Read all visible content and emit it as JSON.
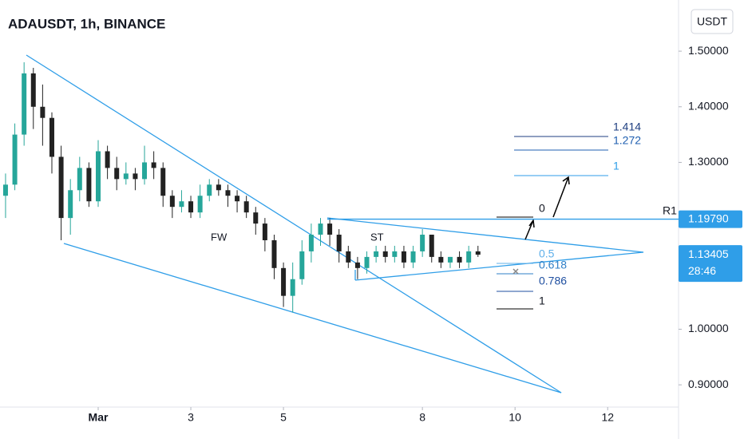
{
  "chart_data": {
    "type": "candlestick",
    "title": "ADAUSDT, 1h, BINANCE",
    "currency": "USDT",
    "x": [
      -2.0,
      -1.8,
      -1.6,
      -1.4,
      -1.2,
      -1.0,
      -0.8,
      -0.6,
      -0.4,
      -0.2,
      0,
      0.2,
      0.4,
      0.6,
      0.8,
      1.0,
      1.2,
      1.4,
      1.6,
      1.8,
      2.0,
      2.2,
      2.4,
      2.6,
      2.8,
      3.0,
      3.2,
      3.4,
      3.6,
      3.8,
      4.0,
      4.2,
      4.4,
      4.6,
      4.8,
      5.0,
      5.2,
      5.4,
      5.6,
      5.8,
      6.0,
      6.2,
      6.4,
      6.6,
      6.8,
      7.0,
      7.2,
      7.4,
      7.6,
      7.8,
      8.0,
      8.2
    ],
    "open": [
      1.24,
      1.26,
      1.35,
      1.46,
      1.4,
      1.38,
      1.31,
      1.2,
      1.25,
      1.29,
      1.23,
      1.32,
      1.29,
      1.27,
      1.28,
      1.27,
      1.3,
      1.29,
      1.24,
      1.22,
      1.23,
      1.21,
      1.24,
      1.26,
      1.25,
      1.24,
      1.23,
      1.21,
      1.19,
      1.16,
      1.11,
      1.06,
      1.09,
      1.14,
      1.17,
      1.19,
      1.17,
      1.14,
      1.12,
      1.11,
      1.13,
      1.14,
      1.13,
      1.14,
      1.12,
      1.14,
      1.17,
      1.13,
      1.12,
      1.13,
      1.12,
      1.14
    ],
    "high": [
      1.28,
      1.37,
      1.48,
      1.47,
      1.44,
      1.39,
      1.33,
      1.27,
      1.31,
      1.3,
      1.34,
      1.33,
      1.31,
      1.3,
      1.29,
      1.33,
      1.32,
      1.3,
      1.25,
      1.25,
      1.24,
      1.26,
      1.27,
      1.27,
      1.26,
      1.25,
      1.24,
      1.22,
      1.2,
      1.17,
      1.12,
      1.12,
      1.16,
      1.19,
      1.2,
      1.2,
      1.18,
      1.15,
      1.13,
      1.14,
      1.15,
      1.15,
      1.15,
      1.15,
      1.15,
      1.18,
      1.17,
      1.14,
      1.13,
      1.14,
      1.15,
      1.15
    ],
    "low": [
      1.2,
      1.25,
      1.33,
      1.36,
      1.33,
      1.28,
      1.16,
      1.17,
      1.23,
      1.22,
      1.22,
      1.27,
      1.25,
      1.26,
      1.25,
      1.26,
      1.27,
      1.22,
      1.2,
      1.21,
      1.2,
      1.2,
      1.23,
      1.24,
      1.22,
      1.21,
      1.2,
      1.17,
      1.14,
      1.09,
      1.04,
      1.03,
      1.08,
      1.12,
      1.15,
      1.15,
      1.12,
      1.11,
      1.09,
      1.1,
      1.12,
      1.12,
      1.12,
      1.11,
      1.11,
      1.13,
      1.12,
      1.11,
      1.11,
      1.11,
      1.11,
      1.13
    ],
    "close": [
      1.26,
      1.35,
      1.46,
      1.4,
      1.38,
      1.31,
      1.2,
      1.25,
      1.29,
      1.23,
      1.32,
      1.29,
      1.27,
      1.28,
      1.27,
      1.3,
      1.29,
      1.24,
      1.22,
      1.23,
      1.21,
      1.24,
      1.26,
      1.25,
      1.24,
      1.23,
      1.21,
      1.19,
      1.16,
      1.11,
      1.06,
      1.09,
      1.14,
      1.17,
      1.19,
      1.17,
      1.14,
      1.12,
      1.11,
      1.13,
      1.14,
      1.13,
      1.14,
      1.12,
      1.14,
      1.17,
      1.13,
      1.12,
      1.13,
      1.12,
      1.14,
      1.13405
    ],
    "up_color": "#26a69a",
    "down_color": "#222222",
    "xlim": [
      -2.12,
      12.53
    ],
    "ylim": [
      0.86,
      1.592
    ],
    "xticks": [
      {
        "value": 0,
        "label": "Mar"
      },
      {
        "value": 2,
        "label": "3"
      },
      {
        "value": 4,
        "label": "5"
      },
      {
        "value": 7,
        "label": "8"
      },
      {
        "value": 9,
        "label": "10"
      },
      {
        "value": 11,
        "label": "12"
      }
    ],
    "yticks": [
      {
        "value": 0.9,
        "label": "0.90000"
      },
      {
        "value": 1.0,
        "label": "1.00000"
      },
      {
        "value": 1.3,
        "label": "1.30000"
      },
      {
        "value": 1.4,
        "label": "1.40000"
      },
      {
        "value": 1.5,
        "label": "1.50000"
      }
    ],
    "resistance": {
      "name": "R1",
      "value": 1.1979,
      "label": "1.19790"
    },
    "last_price": 1.13405,
    "countdown": "28:46",
    "annotations": {
      "fw": "FW",
      "st": "ST",
      "fib_lower": [
        "0.5",
        "0.618",
        "0.786",
        "1"
      ],
      "fib_upper": [
        "0",
        "1",
        "1.272",
        "1.414"
      ]
    }
  }
}
